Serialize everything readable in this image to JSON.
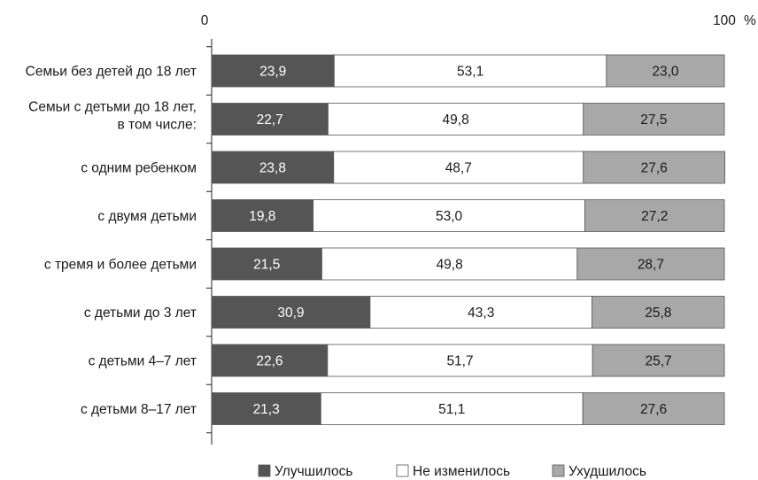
{
  "chart_data": {
    "type": "bar",
    "orientation": "horizontal",
    "stacked": true,
    "title": "",
    "xlabel": "",
    "ylabel": "",
    "xlim": [
      0,
      100
    ],
    "x_ticks": [
      "0",
      "100"
    ],
    "unit": "%",
    "grid": false,
    "legend_position": "bottom",
    "categories": [
      "Семьи без детей до 18 лет",
      "Семьи с детьми до 18 лет,|в том числе:",
      "с одним ребенком",
      "с двумя детьми",
      "с тремя и более детьми",
      "с детьми до 3 лет",
      "с детьми  4–7 лет",
      "с детьми 8–17 лет"
    ],
    "series": [
      {
        "name": "Улучшилось",
        "color": "#555555",
        "text_color": "#ffffff",
        "values": [
          23.9,
          22.7,
          23.8,
          19.8,
          21.5,
          30.9,
          22.6,
          21.3
        ],
        "labels": [
          "23,9",
          "22,7",
          "23,8",
          "19,8",
          "21,5",
          "30,9",
          "22,6",
          "21,3"
        ]
      },
      {
        "name": "Не изменилось",
        "color": "#ffffff",
        "text_color": "#1a1a1a",
        "values": [
          53.1,
          49.8,
          48.7,
          53.0,
          49.8,
          43.3,
          51.7,
          51.1
        ],
        "labels": [
          "53,1",
          "49,8",
          "48,7",
          "53,0",
          "49,8",
          "43,3",
          "51,7",
          "51,1"
        ]
      },
      {
        "name": "Ухудшилось",
        "color": "#a8a8a8",
        "text_color": "#1a1a1a",
        "values": [
          23.0,
          27.5,
          27.6,
          27.2,
          28.7,
          25.8,
          25.7,
          27.6
        ],
        "labels": [
          "23,0",
          "27,5",
          "27,6",
          "27,2",
          "28,7",
          "25,8",
          "25,7",
          "27,6"
        ]
      }
    ]
  }
}
